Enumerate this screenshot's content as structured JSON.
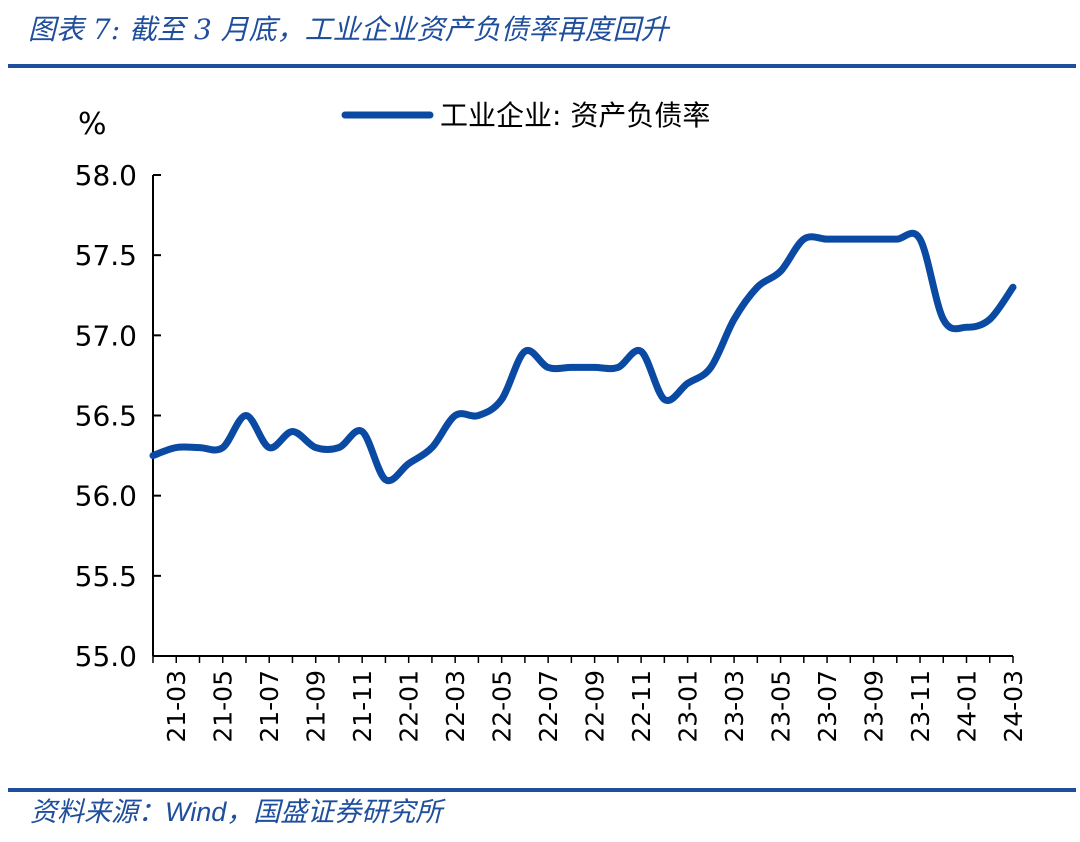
{
  "header": {
    "title_part1": "图表 7:  截至 3 月底，工业企业资产负债率再度回升"
  },
  "footer": {
    "source_prefix": "资料来源：",
    "source_wind": "Wind",
    "source_suffix": "，国盛证券研究所"
  },
  "colors": {
    "accent": "#1f4e9c",
    "series": "#0b4aa2"
  },
  "chart_data": {
    "type": "line",
    "ylabel": "%",
    "ylim": [
      55.0,
      58.0
    ],
    "yticks": [
      "58.0",
      "57.5",
      "57.0",
      "56.5",
      "56.0",
      "55.5",
      "55.0"
    ],
    "ytick_values": [
      58.0,
      57.5,
      57.0,
      56.5,
      56.0,
      55.5,
      55.0
    ],
    "xtick_labels": [
      "21-03",
      "21-05",
      "21-07",
      "21-09",
      "21-11",
      "22-01",
      "22-03",
      "22-05",
      "22-07",
      "22-09",
      "22-11",
      "23-01",
      "23-03",
      "23-05",
      "23-07",
      "23-09",
      "23-11",
      "24-01",
      "24-03"
    ],
    "x": [
      "21-02",
      "21-03",
      "21-04",
      "21-05",
      "21-06",
      "21-07",
      "21-08",
      "21-09",
      "21-10",
      "21-11",
      "21-12",
      "22-01",
      "22-02",
      "22-03",
      "22-04",
      "22-05",
      "22-06",
      "22-07",
      "22-08",
      "22-09",
      "22-10",
      "22-11",
      "22-12",
      "23-01",
      "23-02",
      "23-03",
      "23-04",
      "23-05",
      "23-06",
      "23-07",
      "23-08",
      "23-09",
      "23-10",
      "23-11",
      "23-12",
      "24-01",
      "24-02",
      "24-03"
    ],
    "series": [
      {
        "name": "工业企业: 资产负债率",
        "values": [
          56.25,
          56.3,
          56.3,
          56.3,
          56.5,
          56.3,
          56.4,
          56.3,
          56.3,
          56.4,
          56.1,
          56.2,
          56.3,
          56.5,
          56.5,
          56.6,
          56.9,
          56.8,
          56.8,
          56.8,
          56.8,
          56.9,
          56.6,
          56.7,
          56.8,
          57.1,
          57.3,
          57.4,
          57.6,
          57.6,
          57.6,
          57.6,
          57.6,
          57.6,
          57.1,
          57.05,
          57.1,
          57.3
        ]
      }
    ],
    "grid": false,
    "legend": "top-center"
  }
}
